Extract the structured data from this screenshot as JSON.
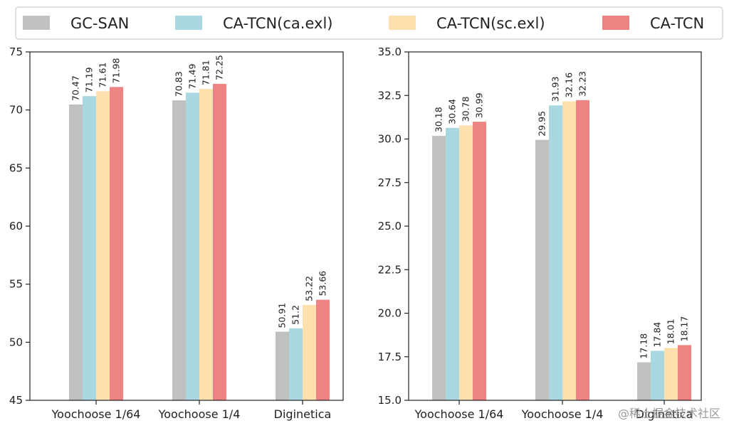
{
  "chart_data": [
    {
      "type": "bar",
      "panel": "left",
      "categories": [
        "Yoochoose 1/64",
        "Yoochoose 1/4",
        "Diginetica"
      ],
      "series": [
        {
          "name": "GC-SAN",
          "values": [
            70.47,
            70.83,
            50.91
          ]
        },
        {
          "name": "CA-TCN(ca.exl)",
          "values": [
            71.19,
            71.49,
            51.2
          ]
        },
        {
          "name": "CA-TCN(sc.exl)",
          "values": [
            71.61,
            71.81,
            53.22
          ]
        },
        {
          "name": "CA-TCN",
          "values": [
            71.98,
            72.25,
            53.66
          ]
        }
      ],
      "value_labels": [
        [
          "70.47",
          "70.83",
          "50.91"
        ],
        [
          "71.19",
          "71.49",
          "51.2"
        ],
        [
          "71.61",
          "71.81",
          "53.22"
        ],
        [
          "71.98",
          "72.25",
          "53.66"
        ]
      ],
      "ylim": [
        45,
        75
      ],
      "yticks": [
        "45",
        "50",
        "55",
        "60",
        "65",
        "70",
        "75"
      ],
      "title": "",
      "xlabel": "",
      "ylabel": "",
      "grid": false
    },
    {
      "type": "bar",
      "panel": "right",
      "categories": [
        "Yoochoose 1/64",
        "Yoochoose 1/4",
        "Diginetica"
      ],
      "series": [
        {
          "name": "GC-SAN",
          "values": [
            30.18,
            29.95,
            17.18
          ]
        },
        {
          "name": "CA-TCN(ca.exl)",
          "values": [
            30.64,
            31.93,
            17.84
          ]
        },
        {
          "name": "CA-TCN(sc.exl)",
          "values": [
            30.78,
            32.16,
            18.01
          ]
        },
        {
          "name": "CA-TCN",
          "values": [
            30.99,
            32.23,
            18.17
          ]
        }
      ],
      "value_labels": [
        [
          "30.18",
          "29.95",
          "17.18"
        ],
        [
          "30.64",
          "31.93",
          "17.84"
        ],
        [
          "30.78",
          "32.16",
          "18.01"
        ],
        [
          "30.99",
          "32.23",
          "18.17"
        ]
      ],
      "ylim": [
        15.0,
        35.0
      ],
      "yticks": [
        "15.0",
        "17.5",
        "20.0",
        "22.5",
        "25.0",
        "27.5",
        "30.0",
        "32.5",
        "35.0"
      ],
      "title": "",
      "xlabel": "",
      "ylabel": "",
      "grid": false
    }
  ],
  "legend": {
    "placement": "top",
    "entries": [
      "GC-SAN",
      "CA-TCN(ca.exl)",
      "CA-TCN(sc.exl)",
      "CA-TCN"
    ]
  },
  "colors": {
    "series": [
      "#c0c0c0",
      "#a9d8e0",
      "#fde0ad",
      "#ee8383"
    ],
    "axis": "#222222",
    "legend_border": "#cccccc"
  },
  "watermark": "@稀土掘金技术社区"
}
